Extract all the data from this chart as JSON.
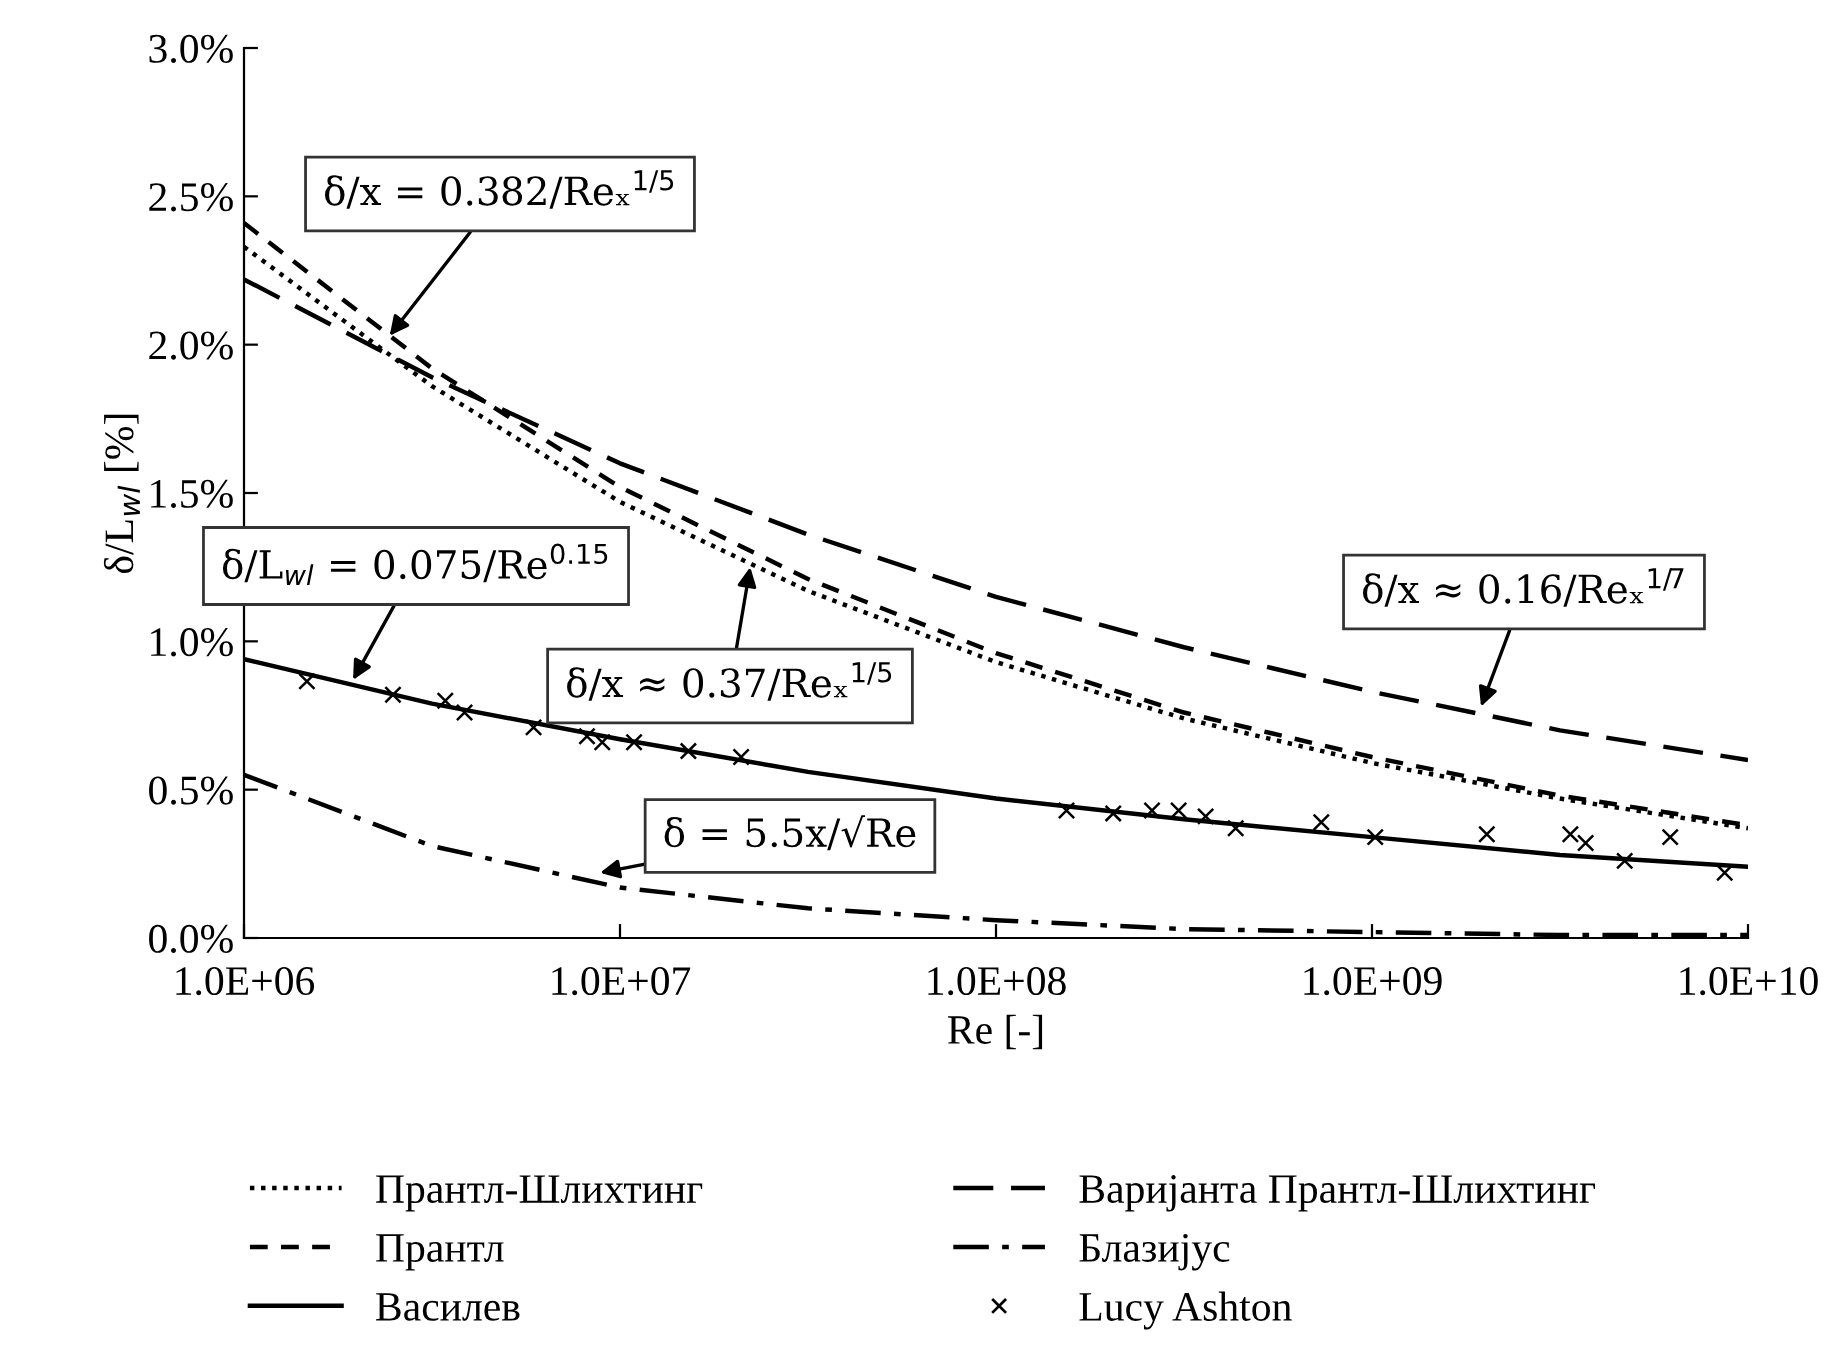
{
  "chart_data": {
    "type": "line",
    "xlabel": "Re [-]",
    "ylabel": "δ/L$_{wl}$ [%]",
    "log": "x",
    "xlim": [
      1000000,
      10000000000
    ],
    "xticks": [
      {
        "value": 1000000,
        "label": "1.0E+06"
      },
      {
        "value": 10000000,
        "label": "1.0E+07"
      },
      {
        "value": 100000000,
        "label": "1.0E+08"
      },
      {
        "value": 1000000000,
        "label": "1.0E+09"
      },
      {
        "value": 10000000000,
        "label": "1.0E+10"
      }
    ],
    "ylim": [
      0,
      3
    ],
    "yticks": [
      {
        "value": 0,
        "label": "0.0%"
      },
      {
        "value": 0.5,
        "label": "0.5%"
      },
      {
        "value": 1,
        "label": "1.0%"
      },
      {
        "value": 1.5,
        "label": "1.5%"
      },
      {
        "value": 2,
        "label": "2.0%"
      },
      {
        "value": 2.5,
        "label": "2.5%"
      },
      {
        "value": 3,
        "label": "3.0%"
      }
    ],
    "x": [
      1000000,
      3162278,
      10000000,
      31622777,
      100000000,
      316227766,
      1000000000,
      3162277660,
      10000000000
    ],
    "grid": false,
    "legend": "bottom",
    "series": [
      {
        "name": "Прантл-Шлихтинг",
        "color": "#000000",
        "line_style": "dotted",
        "marker": "none",
        "values": [
          2.33,
          1.86,
          1.47,
          1.17,
          0.93,
          0.74,
          0.59,
          0.47,
          0.37
        ]
      },
      {
        "name": "Прантл",
        "color": "#000000",
        "line_style": "dashed",
        "marker": "none",
        "values": [
          2.41,
          1.92,
          1.52,
          1.21,
          0.96,
          0.76,
          0.61,
          0.48,
          0.38
        ]
      },
      {
        "name": "Василев",
        "color": "#000000",
        "line_style": "solid",
        "marker": "none",
        "values": [
          0.94,
          0.79,
          0.67,
          0.56,
          0.47,
          0.4,
          0.34,
          0.28,
          0.24
        ]
      },
      {
        "name": "Варијанта Прантл-Шлихтинг",
        "color": "#000000",
        "line_style": "longdash",
        "marker": "none",
        "values": [
          2.22,
          1.89,
          1.6,
          1.36,
          1.15,
          0.98,
          0.83,
          0.7,
          0.6
        ]
      },
      {
        "name": "Блазијус",
        "color": "#000000",
        "line_style": "dashdot",
        "marker": "none",
        "values": [
          0.55,
          0.31,
          0.17,
          0.1,
          0.06,
          0.03,
          0.02,
          0.01,
          0.01
        ]
      },
      {
        "name": "Lucy Ashton",
        "type": "scatter",
        "color": "#000000",
        "marker": "cross",
        "x": [
          1470000,
          2490000,
          3430000,
          3860000,
          5890000,
          8170000,
          8970000,
          10900000,
          15200000,
          21000000,
          154000000,
          205000000,
          260000000,
          306000000,
          361000000,
          434000000,
          733000000,
          1020000000,
          2020000000,
          3370000000,
          3700000000,
          4700000000,
          6210000000,
          8670000000
        ],
        "values": [
          0.865,
          0.82,
          0.8,
          0.76,
          0.71,
          0.68,
          0.66,
          0.66,
          0.63,
          0.61,
          0.43,
          0.42,
          0.43,
          0.43,
          0.41,
          0.37,
          0.39,
          0.34,
          0.35,
          0.35,
          0.32,
          0.26,
          0.34,
          0.22
        ]
      }
    ],
    "annotations": [
      {
        "text": "δ/x = 0.382/Reₓ$^{1/5}$",
        "x": 2440000,
        "y": 2.03
      },
      {
        "text": "δ/L$_{wl}$ = 0.075/Re$^{0.15}$",
        "x": 1950000,
        "y": 0.87
      },
      {
        "text": "δ/x ≈ 0.37/Reₓ$^{1/5}$",
        "x": 22200000,
        "y": 1.25
      },
      {
        "text": "δ = 5.5x/√Re",
        "x": 8850000,
        "y": 0.22
      },
      {
        "text": "δ/x ≈ 0.16/Reₓ$^{1/7}$",
        "x": 1950000000,
        "y": 0.78
      }
    ]
  }
}
